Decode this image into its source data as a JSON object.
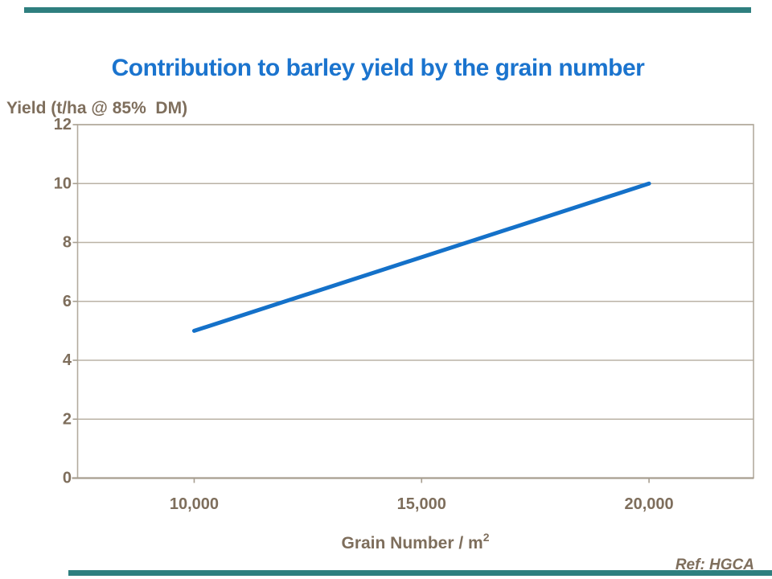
{
  "slide": {
    "accent_color": "#2E7F7F",
    "title_color": "#1B74CE",
    "text_color": "#7E6E5C",
    "source_ref": "Ref: HGCA"
  },
  "chart_data": {
    "type": "line",
    "title": "Contribution to barley yield by the grain number",
    "ylabel": "Yield (t/ha @ 85%  DM)",
    "xlabel_base": "Grain Number / m",
    "xlabel_sup": "2",
    "xlim": [
      7437,
      22297
    ],
    "ylim": [
      0,
      12
    ],
    "xticks": {
      "values": [
        10000,
        15000,
        20000
      ],
      "labels": [
        "10,000",
        "15,000",
        "20,000"
      ]
    },
    "yticks": {
      "values": [
        0,
        2,
        4,
        6,
        8,
        10,
        12
      ],
      "labels": [
        "0",
        "2",
        "4",
        "6",
        "8",
        "10",
        "12"
      ]
    },
    "grid": "horizontal-major-only",
    "legend": "none",
    "series": [
      {
        "name": "yield-vs-grain-number",
        "x": [
          10000,
          20000
        ],
        "y": [
          5,
          10
        ],
        "color": "#1471C9",
        "stroke_width": 5
      }
    ],
    "border_color": "#B3AB9E",
    "grid_color": "#BAB2A5",
    "axis_color": "#A79E90",
    "tick_text_color": "#7E6E5C"
  }
}
